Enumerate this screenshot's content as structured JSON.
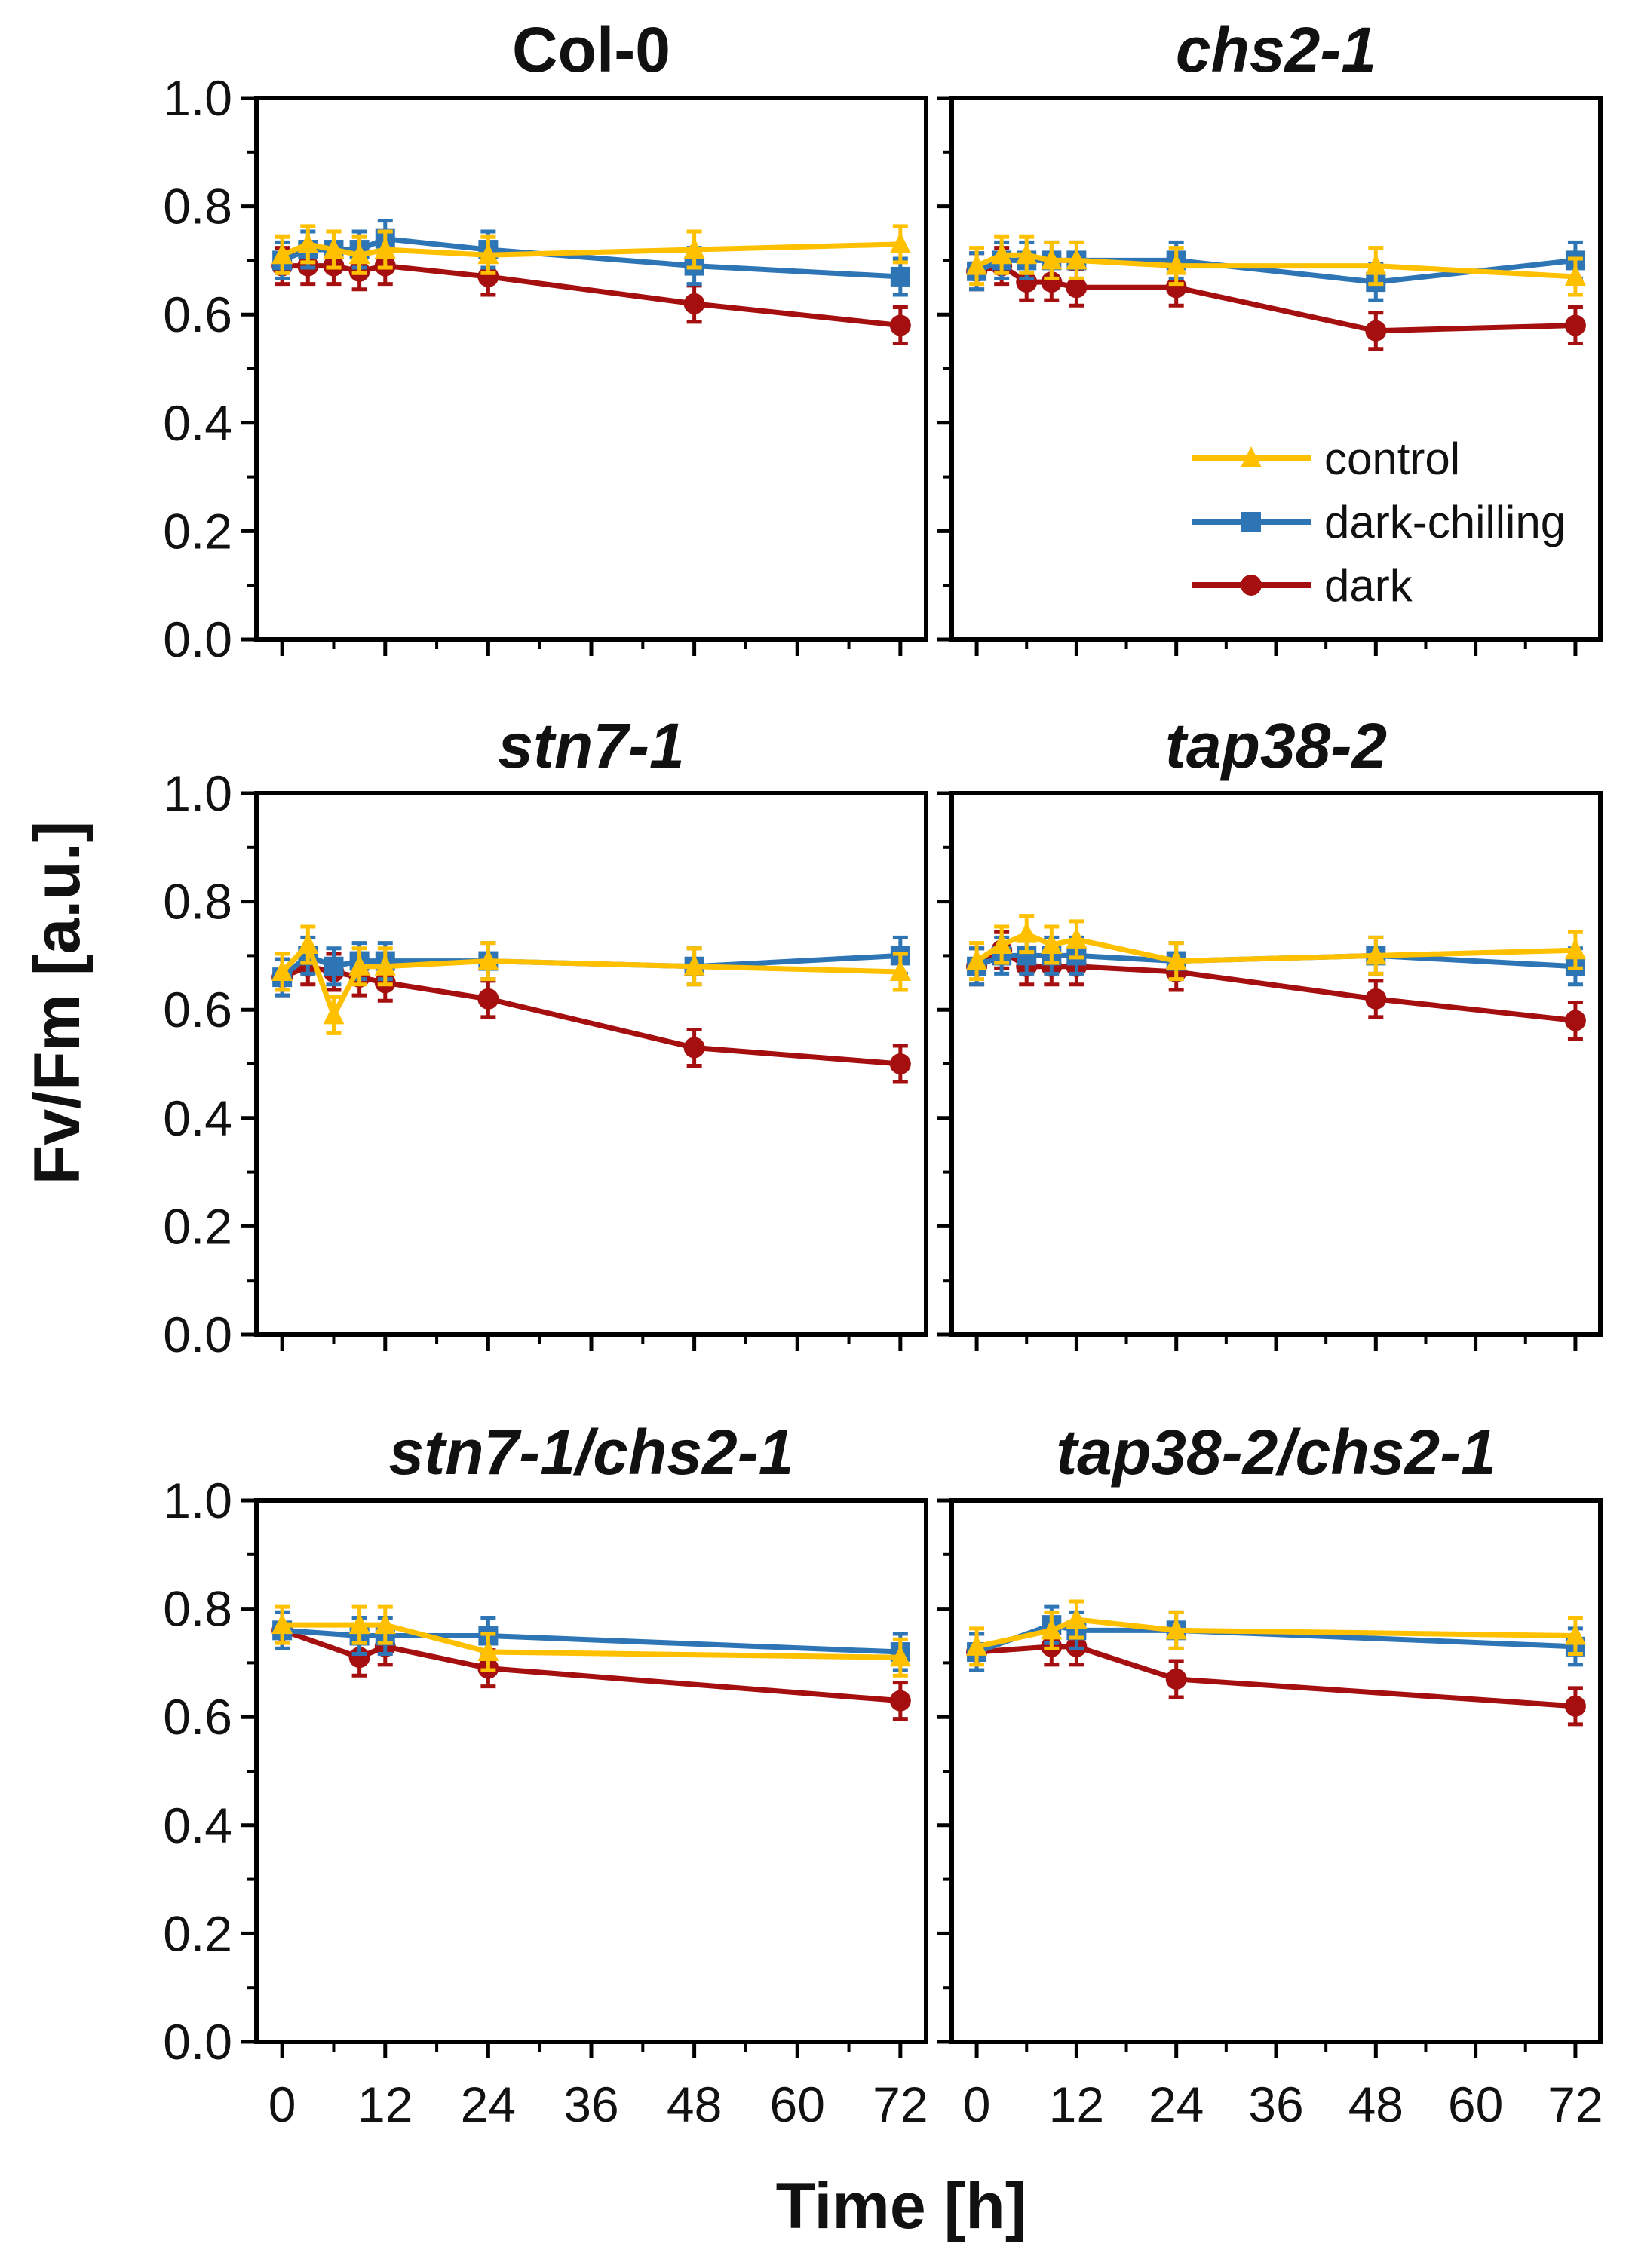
{
  "figure": {
    "ylabel": "Fv/Fm [a.u.]",
    "xlabel": "Time [h]"
  },
  "legend": [
    {
      "label": "control",
      "series_key": "control"
    },
    {
      "label": "dark-chilling",
      "series_key": "dark_chilling"
    },
    {
      "label": "dark",
      "series_key": "dark"
    }
  ],
  "colors": {
    "control": "#FFC000",
    "dark_chilling": "#2E75B6",
    "dark": "#A50F0F",
    "axis": "#000000"
  },
  "chart_data": [
    {
      "type": "line",
      "title": "Col-0",
      "title_italic": false,
      "xlabel": "Time [h]",
      "ylabel": "Fv/Fm [a.u.]",
      "xlim": [
        -3,
        75
      ],
      "ylim": [
        0,
        1.0
      ],
      "xticks": [
        "0",
        "12",
        "24",
        "36",
        "48",
        "60",
        "72"
      ],
      "yticks": [
        "0.0",
        "0.2",
        "0.4",
        "0.6",
        "0.8",
        "1.0"
      ],
      "series": [
        {
          "key": "control",
          "name": "control",
          "marker": "triangle",
          "x": [
            0,
            3,
            6,
            9,
            12,
            24,
            48,
            72
          ],
          "y": [
            0.71,
            0.73,
            0.72,
            0.71,
            0.72,
            0.71,
            0.72,
            0.73
          ]
        },
        {
          "key": "dark_chilling",
          "name": "dark-chilling",
          "marker": "square",
          "x": [
            0,
            3,
            6,
            9,
            12,
            24,
            48,
            72
          ],
          "y": [
            0.7,
            0.72,
            0.72,
            0.72,
            0.74,
            0.72,
            0.69,
            0.67
          ]
        },
        {
          "key": "dark",
          "name": "dark",
          "marker": "circle",
          "x": [
            0,
            3,
            6,
            9,
            12,
            24,
            48,
            72
          ],
          "y": [
            0.69,
            0.69,
            0.69,
            0.68,
            0.69,
            0.67,
            0.62,
            0.58
          ]
        }
      ]
    },
    {
      "type": "line",
      "title": "chs2-1",
      "title_italic": true,
      "xlabel": "Time [h]",
      "ylabel": "Fv/Fm [a.u.]",
      "xlim": [
        -3,
        75
      ],
      "ylim": [
        0,
        1.0
      ],
      "xticks": [
        "0",
        "12",
        "24",
        "36",
        "48",
        "60",
        "72"
      ],
      "yticks": [
        "0.0",
        "0.2",
        "0.4",
        "0.6",
        "0.8",
        "1.0"
      ],
      "series": [
        {
          "key": "control",
          "name": "control",
          "marker": "triangle",
          "x": [
            0,
            3,
            6,
            9,
            12,
            24,
            48,
            72
          ],
          "y": [
            0.69,
            0.71,
            0.71,
            0.7,
            0.7,
            0.69,
            0.69,
            0.67
          ]
        },
        {
          "key": "dark_chilling",
          "name": "dark-chilling",
          "marker": "square",
          "x": [
            0,
            3,
            6,
            9,
            12,
            24,
            48,
            72
          ],
          "y": [
            0.68,
            0.7,
            0.7,
            0.7,
            0.7,
            0.7,
            0.66,
            0.7
          ]
        },
        {
          "key": "dark",
          "name": "dark",
          "marker": "circle",
          "x": [
            0,
            3,
            6,
            9,
            12,
            24,
            48,
            72
          ],
          "y": [
            0.68,
            0.69,
            0.66,
            0.66,
            0.65,
            0.65,
            0.57,
            0.58
          ]
        }
      ]
    },
    {
      "type": "line",
      "title": "stn7-1",
      "title_italic": true,
      "xlabel": "Time [h]",
      "ylabel": "Fv/Fm [a.u.]",
      "xlim": [
        -3,
        75
      ],
      "ylim": [
        0,
        1.0
      ],
      "xticks": [
        "0",
        "12",
        "24",
        "36",
        "48",
        "60",
        "72"
      ],
      "yticks": [
        "0.0",
        "0.2",
        "0.4",
        "0.6",
        "0.8",
        "1.0"
      ],
      "series": [
        {
          "key": "control",
          "name": "control",
          "marker": "triangle",
          "x": [
            0,
            3,
            6,
            9,
            12,
            24,
            48,
            72
          ],
          "y": [
            0.67,
            0.72,
            0.59,
            0.68,
            0.68,
            0.69,
            0.68,
            0.67
          ]
        },
        {
          "key": "dark_chilling",
          "name": "dark-chilling",
          "marker": "square",
          "x": [
            0,
            3,
            6,
            9,
            12,
            24,
            48,
            72
          ],
          "y": [
            0.66,
            0.7,
            0.68,
            0.69,
            0.69,
            0.69,
            0.68,
            0.7
          ]
        },
        {
          "key": "dark",
          "name": "dark",
          "marker": "circle",
          "x": [
            0,
            3,
            6,
            9,
            12,
            24,
            48,
            72
          ],
          "y": [
            0.66,
            0.68,
            0.67,
            0.66,
            0.65,
            0.62,
            0.53,
            0.5
          ]
        }
      ]
    },
    {
      "type": "line",
      "title": "tap38-2",
      "title_italic": true,
      "xlabel": "Time [h]",
      "ylabel": "Fv/Fm [a.u.]",
      "xlim": [
        -3,
        75
      ],
      "ylim": [
        0,
        1.0
      ],
      "xticks": [
        "0",
        "12",
        "24",
        "36",
        "48",
        "60",
        "72"
      ],
      "yticks": [
        "0.0",
        "0.2",
        "0.4",
        "0.6",
        "0.8",
        "1.0"
      ],
      "series": [
        {
          "key": "control",
          "name": "control",
          "marker": "triangle",
          "x": [
            0,
            3,
            6,
            9,
            12,
            24,
            48,
            72
          ],
          "y": [
            0.69,
            0.72,
            0.74,
            0.72,
            0.73,
            0.69,
            0.7,
            0.71
          ]
        },
        {
          "key": "dark_chilling",
          "name": "dark-chilling",
          "marker": "square",
          "x": [
            0,
            3,
            6,
            9,
            12,
            24,
            48,
            72
          ],
          "y": [
            0.68,
            0.7,
            0.7,
            0.7,
            0.7,
            0.69,
            0.7,
            0.68
          ]
        },
        {
          "key": "dark",
          "name": "dark",
          "marker": "circle",
          "x": [
            0,
            3,
            6,
            9,
            12,
            24,
            48,
            72
          ],
          "y": [
            0.68,
            0.71,
            0.68,
            0.68,
            0.68,
            0.67,
            0.62,
            0.58
          ]
        }
      ]
    },
    {
      "type": "line",
      "title": "stn7-1/chs2-1",
      "title_italic": true,
      "xlabel": "Time [h]",
      "ylabel": "Fv/Fm [a.u.]",
      "xlim": [
        -3,
        75
      ],
      "ylim": [
        0,
        1.0
      ],
      "xticks": [
        "0",
        "12",
        "24",
        "36",
        "48",
        "60",
        "72"
      ],
      "yticks": [
        "0.0",
        "0.2",
        "0.4",
        "0.6",
        "0.8",
        "1.0"
      ],
      "series": [
        {
          "key": "control",
          "name": "control",
          "marker": "triangle",
          "x": [
            0,
            9,
            12,
            24,
            72
          ],
          "y": [
            0.77,
            0.77,
            0.77,
            0.72,
            0.71
          ]
        },
        {
          "key": "dark_chilling",
          "name": "dark-chilling",
          "marker": "square",
          "x": [
            0,
            9,
            12,
            24,
            72
          ],
          "y": [
            0.76,
            0.75,
            0.75,
            0.75,
            0.72
          ]
        },
        {
          "key": "dark",
          "name": "dark",
          "marker": "circle",
          "x": [
            0,
            9,
            12,
            24,
            72
          ],
          "y": [
            0.76,
            0.71,
            0.73,
            0.69,
            0.63
          ]
        }
      ]
    },
    {
      "type": "line",
      "title": "tap38-2/chs2-1",
      "title_italic": true,
      "xlabel": "Time [h]",
      "ylabel": "Fv/Fm [a.u.]",
      "xlim": [
        -3,
        75
      ],
      "ylim": [
        0,
        1.0
      ],
      "xticks": [
        "0",
        "12",
        "24",
        "36",
        "48",
        "60",
        "72"
      ],
      "yticks": [
        "0.0",
        "0.2",
        "0.4",
        "0.6",
        "0.8",
        "1.0"
      ],
      "series": [
        {
          "key": "control",
          "name": "control",
          "marker": "triangle",
          "x": [
            0,
            9,
            12,
            24,
            72
          ],
          "y": [
            0.73,
            0.76,
            0.78,
            0.76,
            0.75
          ]
        },
        {
          "key": "dark_chilling",
          "name": "dark-chilling",
          "marker": "square",
          "x": [
            0,
            9,
            12,
            24,
            72
          ],
          "y": [
            0.72,
            0.77,
            0.76,
            0.76,
            0.73
          ]
        },
        {
          "key": "dark",
          "name": "dark",
          "marker": "circle",
          "x": [
            0,
            9,
            12,
            24,
            72
          ],
          "y": [
            0.72,
            0.73,
            0.73,
            0.67,
            0.62
          ]
        }
      ]
    }
  ]
}
